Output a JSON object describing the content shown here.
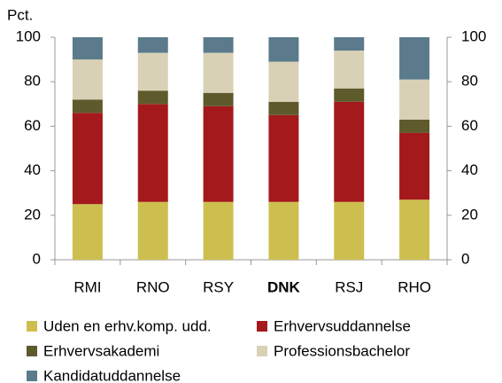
{
  "chart_data": {
    "type": "stacked_bar",
    "y_label": "Pct.",
    "categories": [
      "RMI",
      "RNO",
      "RSY",
      "DNK",
      "RSJ",
      "RHO"
    ],
    "highlight": "DNK",
    "series": [
      {
        "name": "Uden en erhv.komp. udd.",
        "color": "#cdbf4f",
        "values": [
          25,
          26,
          26,
          26,
          26,
          27
        ]
      },
      {
        "name": "Erhvervsuddannelse",
        "color": "#a41a1c",
        "values": [
          41,
          44,
          43,
          39,
          45,
          30
        ]
      },
      {
        "name": "Erhvervsakademi",
        "color": "#5e5a2c",
        "values": [
          6,
          6,
          6,
          6,
          6,
          6
        ]
      },
      {
        "name": "Professionsbachelor",
        "color": "#d9d1b6",
        "values": [
          18,
          17,
          18,
          18,
          17,
          18
        ]
      },
      {
        "name": "Kandidatuddannelse",
        "color": "#5b7b8c",
        "values": [
          10,
          7,
          7,
          11,
          6,
          19
        ]
      }
    ],
    "ylim": [
      0,
      100
    ],
    "yticks": [
      0,
      20,
      40,
      60,
      80,
      100
    ],
    "y2lim": [
      0,
      100
    ],
    "y2ticks": [
      0,
      20,
      40,
      60,
      80,
      100
    ],
    "grid": false
  }
}
